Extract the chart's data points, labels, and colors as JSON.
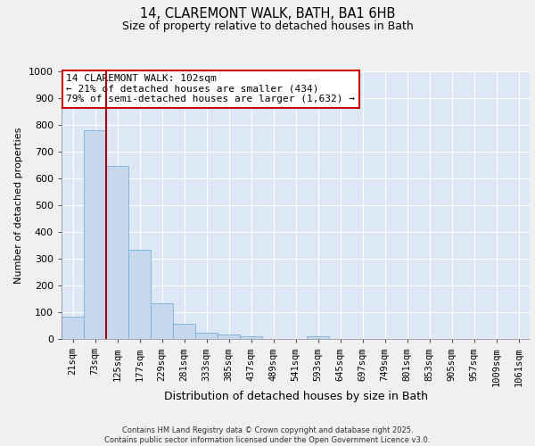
{
  "title1": "14, CLAREMONT WALK, BATH, BA1 6HB",
  "title2": "Size of property relative to detached houses in Bath",
  "xlabel": "Distribution of detached houses by size in Bath",
  "ylabel": "Number of detached properties",
  "bar_labels": [
    "21sqm",
    "73sqm",
    "125sqm",
    "177sqm",
    "229sqm",
    "281sqm",
    "333sqm",
    "385sqm",
    "437sqm",
    "489sqm",
    "541sqm",
    "593sqm",
    "645sqm",
    "697sqm",
    "749sqm",
    "801sqm",
    "853sqm",
    "905sqm",
    "957sqm",
    "1009sqm",
    "1061sqm"
  ],
  "bar_values": [
    83,
    780,
    648,
    335,
    135,
    58,
    22,
    16,
    9,
    0,
    0,
    10,
    0,
    0,
    0,
    0,
    0,
    0,
    0,
    0,
    0
  ],
  "bar_color": "#c5d8ee",
  "bar_edgecolor": "#7aafd4",
  "background_color": "#dce8f5",
  "fig_background": "#f0f0f0",
  "grid_color": "#ffffff",
  "vline_x": 1.5,
  "vline_color": "#aa0000",
  "ylim": [
    0,
    1000
  ],
  "yticks": [
    0,
    100,
    200,
    300,
    400,
    500,
    600,
    700,
    800,
    900,
    1000
  ],
  "annotation_text": "14 CLAREMONT WALK: 102sqm\n← 21% of detached houses are smaller (434)\n79% of semi-detached houses are larger (1,632) →",
  "annotation_box_color": "#ffffff",
  "annotation_box_edgecolor": "#cc0000",
  "footer_text1": "Contains HM Land Registry data © Crown copyright and database right 2025.",
  "footer_text2": "Contains public sector information licensed under the Open Government Licence v3.0."
}
